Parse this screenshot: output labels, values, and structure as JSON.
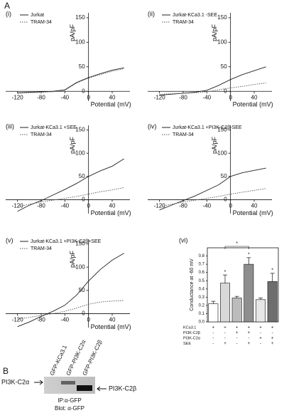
{
  "panel_a": "A",
  "chart_data": [
    {
      "type": "line",
      "panel_label": "(i)",
      "xlabel": "Potential (mV)",
      "ylabel": "pA/pF",
      "x": [
        -120,
        -100,
        -80,
        -60,
        -40,
        -20,
        0,
        20,
        40,
        60
      ],
      "xlim": [
        -140,
        70
      ],
      "xticks": [
        -120,
        -80,
        -40,
        0,
        40
      ],
      "ylim": [
        -20,
        160
      ],
      "yticks": [
        0,
        50,
        100,
        150
      ],
      "series": [
        {
          "name": "Jurkat",
          "color": "#222",
          "line_style": "solid",
          "values": [
            -3,
            -2,
            -1,
            0,
            3,
            18,
            28,
            36,
            43,
            48
          ]
        },
        {
          "name": "TRAM-34",
          "color": "#555",
          "line_style": "dotted",
          "values": [
            -4,
            -3,
            -2,
            -1,
            2,
            17,
            27,
            34,
            41,
            46
          ]
        }
      ]
    },
    {
      "type": "line",
      "panel_label": "(ii)",
      "xlabel": "Potential (mV)",
      "ylabel": "pA/pF",
      "x": [
        -120,
        -100,
        -80,
        -60,
        -40,
        -20,
        0,
        20,
        40,
        60
      ],
      "xlim": [
        -140,
        70
      ],
      "xticks": [
        -120,
        -80,
        -40,
        0,
        40
      ],
      "ylim": [
        -20,
        160
      ],
      "yticks": [
        0,
        50,
        100,
        150
      ],
      "series": [
        {
          "name": "Jurkat-KCa3.1 -SEE",
          "color": "#222",
          "line_style": "solid",
          "values": [
            -8,
            -6,
            -4,
            -2,
            2,
            12,
            24,
            34,
            42,
            50
          ]
        },
        {
          "name": "TRAM-34",
          "color": "#555",
          "line_style": "dotted",
          "values": [
            -6,
            -5,
            -4,
            -3,
            -1,
            3,
            7,
            10,
            14,
            17
          ]
        }
      ]
    },
    {
      "type": "line",
      "panel_label": "(iii)",
      "xlabel": "Potential (mV)",
      "ylabel": "pA/pF",
      "x": [
        -120,
        -100,
        -80,
        -60,
        -40,
        -20,
        0,
        20,
        40,
        60
      ],
      "xlim": [
        -140,
        70
      ],
      "xticks": [
        -120,
        -80,
        -40,
        0,
        40
      ],
      "ylim": [
        -30,
        160
      ],
      "yticks": [
        0,
        50,
        100,
        150
      ],
      "series": [
        {
          "name": "Jurkat-KCa3.1 +SEE",
          "color": "#222",
          "line_style": "solid",
          "values": [
            -25,
            -12,
            -2,
            10,
            22,
            35,
            50,
            62,
            72,
            88
          ]
        },
        {
          "name": "TRAM-34",
          "color": "#555",
          "line_style": "dotted",
          "values": [
            -15,
            -10,
            -5,
            -1,
            3,
            7,
            12,
            17,
            21,
            26
          ]
        }
      ]
    },
    {
      "type": "line",
      "panel_label": "(iv)",
      "xlabel": "Potential (mV)",
      "ylabel": "pA/pF",
      "x": [
        -120,
        -100,
        -80,
        -60,
        -40,
        -20,
        0,
        20,
        40,
        60
      ],
      "xlim": [
        -140,
        70
      ],
      "xticks": [
        -120,
        -80,
        -40,
        0,
        40
      ],
      "ylim": [
        -30,
        160
      ],
      "yticks": [
        0,
        50,
        100,
        150
      ],
      "series": [
        {
          "name": "Jurkat-KCa3.1 +PI3K-C2β-SEE",
          "color": "#222",
          "line_style": "solid",
          "values": [
            -22,
            -12,
            -2,
            8,
            20,
            32,
            50,
            58,
            63,
            68
          ]
        },
        {
          "name": "TRAM-34",
          "color": "#555",
          "line_style": "dotted",
          "values": [
            -15,
            -10,
            -5,
            -1,
            3,
            7,
            12,
            16,
            20,
            24
          ]
        }
      ]
    },
    {
      "type": "line",
      "panel_label": "(v)",
      "xlabel": "Potential (mV)",
      "ylabel": "pA/pF",
      "x": [
        -120,
        -100,
        -80,
        -60,
        -40,
        -20,
        0,
        20,
        40,
        60
      ],
      "xlim": [
        -140,
        70
      ],
      "xticks": [
        -120,
        -80,
        -40,
        0,
        40
      ],
      "ylim": [
        -30,
        160
      ],
      "yticks": [
        0,
        50,
        100,
        150
      ],
      "series": [
        {
          "name": "Jurkat-KCa3.1 +PI3K-C2β+SEE",
          "color": "#222",
          "line_style": "solid",
          "values": [
            -28,
            -18,
            -6,
            5,
            18,
            40,
            70,
            95,
            115,
            130
          ]
        },
        {
          "name": "TRAM-34",
          "color": "#555",
          "line_style": "dotted",
          "values": [
            -12,
            -8,
            -4,
            0,
            5,
            12,
            20,
            25,
            27,
            28
          ]
        }
      ]
    },
    {
      "type": "bar",
      "panel_label": "(vi)",
      "ylabel": "Conductance at -60 mV",
      "values": [
        0.22,
        0.47,
        0.29,
        0.7,
        0.27,
        0.49
      ],
      "errors": [
        0.03,
        0.1,
        0.02,
        0.08,
        0.02,
        0.1
      ],
      "colors": [
        "#ffffff",
        "#d8d8d8",
        "#bcbcbc",
        "#8e8e8e",
        "#e6e6e6",
        "#6e6e6e"
      ],
      "ylim": [
        0,
        0.9
      ],
      "yticks": [
        {
          "value": 0,
          "label": "0.0"
        },
        0.1,
        0.2,
        0.3,
        0.4,
        0.5,
        0.6,
        0.7,
        0.8
      ],
      "stars": [
        {
          "bar": 1,
          "label": "*"
        },
        {
          "bar": 3,
          "label": "*"
        },
        {
          "bar": 5,
          "label": "*"
        }
      ],
      "bracket": {
        "from": 1,
        "to": 3,
        "label": "*"
      },
      "table": [
        {
          "label": "KCa3.1",
          "marks": [
            "+",
            "+",
            "+",
            "+",
            "+",
            "+"
          ]
        },
        {
          "label": "PI3K-C2β",
          "marks": [
            "-",
            "-",
            "+",
            "+",
            "-",
            "-"
          ]
        },
        {
          "label": "PI3K-C2α",
          "marks": [
            "-",
            "-",
            "-",
            "-",
            "+",
            "+"
          ]
        },
        {
          "label": "SEE",
          "marks": [
            "-",
            "+",
            "-",
            "+",
            "-",
            "+"
          ]
        }
      ]
    }
  ],
  "panel_b": {
    "label": "B",
    "lanes": [
      "GFP-KCa3.1",
      "GFP-PI3K-C2α",
      "GFP-PI3K-C2β"
    ],
    "left_band": "PI3K-C2α",
    "right_band": "PI3K-C2β",
    "ip": "IP:α-GFP",
    "blot": "Blot: α-GFP"
  }
}
